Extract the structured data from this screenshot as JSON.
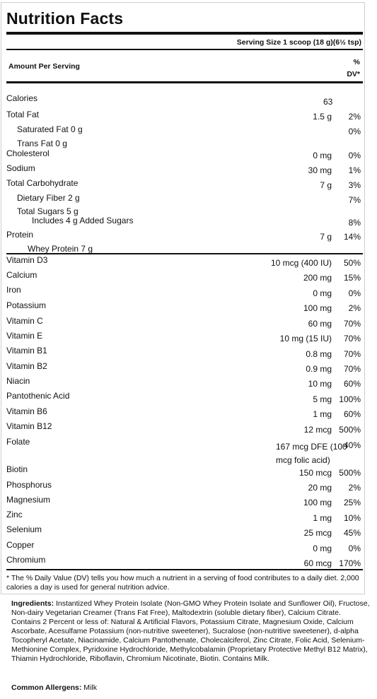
{
  "header": {
    "title": "Nutrition Facts",
    "serving_size": "Serving Size 1 scoop (18 g)(6½ tsp)",
    "amount_per_serving": "Amount Per Serving",
    "dv_top": "%",
    "dv_bottom": "DV*"
  },
  "calories": {
    "label": "Calories",
    "value": "63"
  },
  "nutrients": [
    {
      "label": "Total Fat",
      "amount": "1.5 g",
      "dv": "2%"
    },
    {
      "label": "Saturated Fat   0 g",
      "amount": "",
      "dv": "0%"
    },
    {
      "label": "Trans Fat   0 g",
      "amount": "",
      "dv": ""
    },
    {
      "label": "Cholesterol",
      "amount": "0 mg",
      "dv": "0%"
    },
    {
      "label": "Sodium",
      "amount": "30 mg",
      "dv": "1%"
    },
    {
      "label": "Total Carbohydrate",
      "amount": "7 g",
      "dv": "3%"
    },
    {
      "label": "Dietary Fiber   2 g",
      "amount": "",
      "dv": "7%"
    },
    {
      "label": "Total Sugars   5 g",
      "amount": "",
      "dv": ""
    },
    {
      "label": "Includes 4 g Added Sugars",
      "amount": "",
      "dv": "8%"
    },
    {
      "label": "Protein",
      "amount": "7 g",
      "dv": "14%"
    },
    {
      "label": "Whey Protein   7 g",
      "amount": "",
      "dv": ""
    }
  ],
  "vitamins": [
    {
      "label": "Vitamin D3",
      "amount": "10 mcg (400 IU)",
      "dv": "50%"
    },
    {
      "label": "Calcium",
      "amount": "200 mg",
      "dv": "15%"
    },
    {
      "label": "Iron",
      "amount": "0 mg",
      "dv": "0%"
    },
    {
      "label": "Potassium",
      "amount": "100 mg",
      "dv": "2%"
    },
    {
      "label": "Vitamin C",
      "amount": "60 mg",
      "dv": "70%"
    },
    {
      "label": "Vitamin E",
      "amount": "10 mg (15 IU)",
      "dv": "70%"
    },
    {
      "label": "Vitamin B1",
      "amount": "0.8 mg",
      "dv": "70%"
    },
    {
      "label": "Vitamin B2",
      "amount": "0.9 mg",
      "dv": "70%"
    },
    {
      "label": "Niacin",
      "amount": "10 mg",
      "dv": "60%"
    },
    {
      "label": "Pantothenic Acid",
      "amount": "5 mg",
      "dv": "100%"
    },
    {
      "label": "Vitamin B6",
      "amount": "1 mg",
      "dv": "60%"
    },
    {
      "label": "Vitamin B12",
      "amount": "12 mcg",
      "dv": "500%"
    },
    {
      "label": "Folate",
      "amount_line1": "167 mcg DFE (100",
      "amount_line2": "mcg folic acid)",
      "dv": "40%"
    },
    {
      "label": "Biotin",
      "amount": "150 mcg",
      "dv": "500%"
    },
    {
      "label": "Phosphorus",
      "amount": "20 mg",
      "dv": "2%"
    },
    {
      "label": "Magnesium",
      "amount": "100 mg",
      "dv": "25%"
    },
    {
      "label": "Zinc",
      "amount": "1 mg",
      "dv": "10%"
    },
    {
      "label": "Selenium",
      "amount": "25 mcg",
      "dv": "45%"
    },
    {
      "label": "Copper",
      "amount": "0 mg",
      "dv": "0%"
    },
    {
      "label": "Chromium",
      "amount": "60 mcg",
      "dv": "170%"
    }
  ],
  "footnote": "* The % Daily Value (DV) tells you how much a nutrient in a serving of food contributes to a daily diet. 2,000 calories a day is used for general nutrition advice.",
  "ingredients": {
    "label": "Ingredients:",
    "text": "Instantized Whey Protein Isolate (Non-GMO Whey Protein Isolate and Sunflower Oil), Fructose, Non-dairy Vegetarian Creamer (Trans Fat Free), Maltodextrin (soluble dietary fiber), Calcium Citrate. Contains 2 Percent or less of: Natural & Artificial Flavors, Potassium Citrate, Magnesium Oxide, Calcium Ascorbate, Acesulfame Potassium (non-nutritive sweetener), Sucralose (non-nutritive sweetener), d-alpha Tocopheryl Acetate, Niacinamide, Calcium Pantothenate, Cholecalciferol, Zinc Citrate, Folic Acid, Selenium-Methionine Complex, Pyridoxine Hydrochloride, Methylcobalamin (Proprietary Protective Methyl B12 Matrix), Thiamin Hydrochloride, Riboflavin, Chromium Nicotinate, Biotin. Contains Milk."
  },
  "allergens": {
    "label": "Common Allergens:",
    "text": "Milk"
  }
}
